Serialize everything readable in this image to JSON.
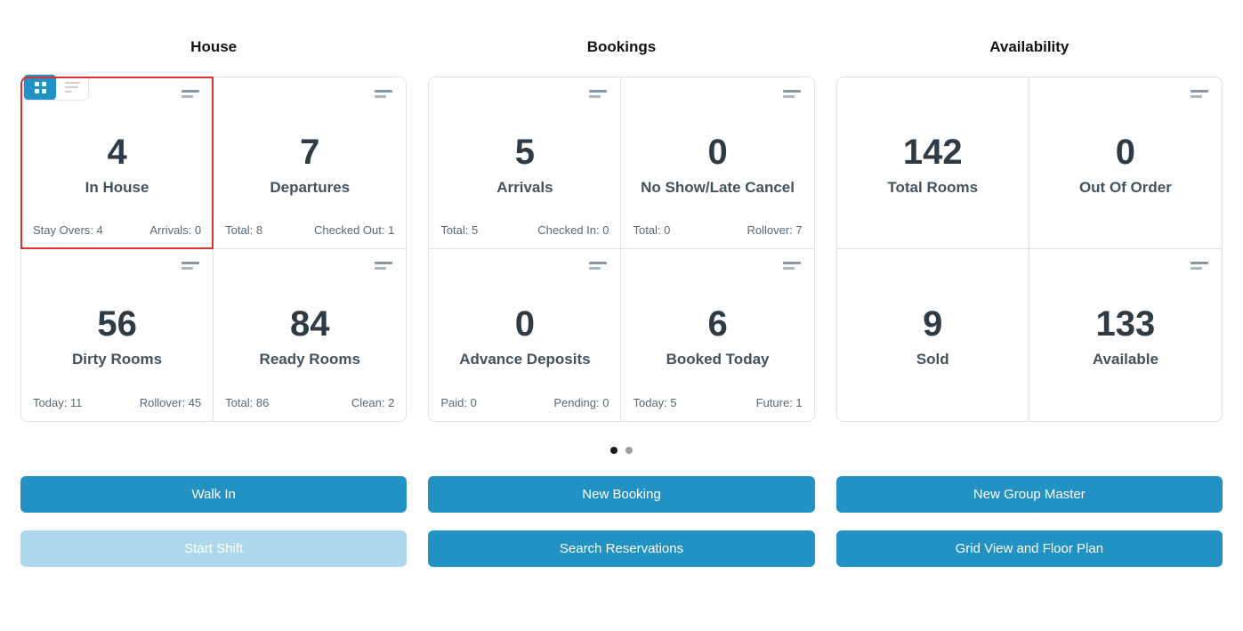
{
  "colors": {
    "accent_blue": "#2291c4",
    "disabled_blue": "#aed7eb",
    "highlight_red": "#e03131",
    "dot_active": "#1a1a1a",
    "dot_inactive": "#9b9fa4"
  },
  "view_toggle": {
    "active": "grid",
    "icons": [
      "grid-view-icon",
      "list-view-icon"
    ]
  },
  "groups": [
    {
      "title": "House",
      "cards": [
        {
          "value": "4",
          "label": "In House",
          "footer_left": "Stay Overs: 4",
          "footer_right": "Arrivals: 0",
          "has_icon": true,
          "highlighted": true
        },
        {
          "value": "7",
          "label": "Departures",
          "footer_left": "Total: 8",
          "footer_right": "Checked Out: 1",
          "has_icon": true
        },
        {
          "value": "56",
          "label": "Dirty Rooms",
          "footer_left": "Today: 11",
          "footer_right": "Rollover: 45",
          "has_icon": true
        },
        {
          "value": "84",
          "label": "Ready Rooms",
          "footer_left": "Total: 86",
          "footer_right": "Clean: 2",
          "has_icon": true
        }
      ]
    },
    {
      "title": "Bookings",
      "cards": [
        {
          "value": "5",
          "label": "Arrivals",
          "footer_left": "Total: 5",
          "footer_right": "Checked In: 0",
          "has_icon": true
        },
        {
          "value": "0",
          "label": "No Show/Late Cancel",
          "footer_left": "Total: 0",
          "footer_right": "Rollover: 7",
          "has_icon": true
        },
        {
          "value": "0",
          "label": "Advance Deposits",
          "footer_left": "Paid: 0",
          "footer_right": "Pending: 0",
          "has_icon": true
        },
        {
          "value": "6",
          "label": "Booked Today",
          "footer_left": "Today: 5",
          "footer_right": "Future: 1",
          "has_icon": true
        }
      ]
    },
    {
      "title": "Availability",
      "cards": [
        {
          "value": "142",
          "label": "Total Rooms",
          "has_icon": false
        },
        {
          "value": "0",
          "label": "Out Of Order",
          "has_icon": true
        },
        {
          "value": "9",
          "label": "Sold",
          "has_icon": false
        },
        {
          "value": "133",
          "label": "Available",
          "has_icon": true
        }
      ]
    }
  ],
  "pagination": {
    "dots": [
      {
        "active": true
      },
      {
        "active": false
      }
    ]
  },
  "actions": [
    {
      "label": "Walk In",
      "disabled": false
    },
    {
      "label": "New Booking",
      "disabled": false
    },
    {
      "label": "New Group Master",
      "disabled": false
    },
    {
      "label": "Start Shift",
      "disabled": true
    },
    {
      "label": "Search Reservations",
      "disabled": false
    },
    {
      "label": "Grid View and Floor Plan",
      "disabled": false
    }
  ]
}
